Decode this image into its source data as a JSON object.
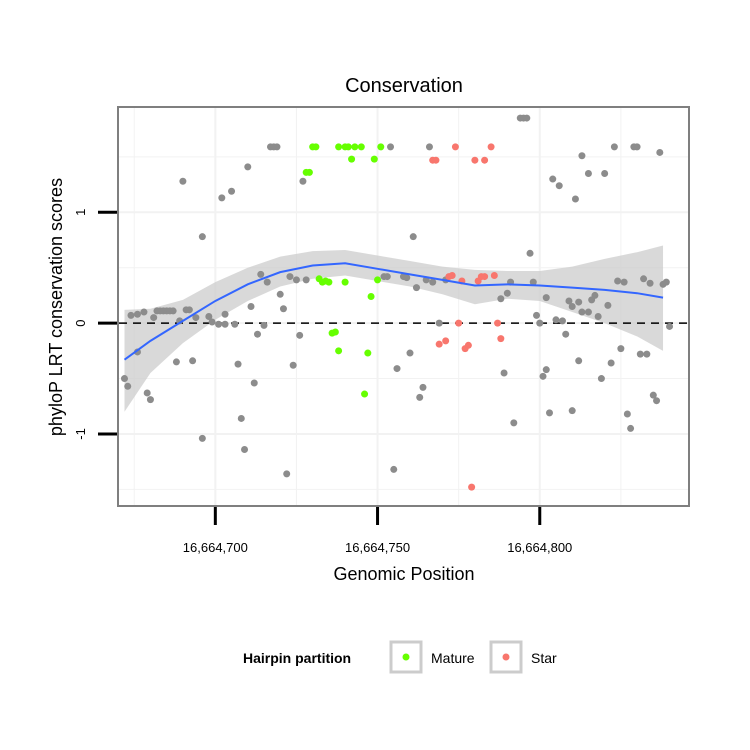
{
  "chart_data": {
    "type": "scatter",
    "title": "Conservation",
    "xlabel": "Genomic Position",
    "ylabel": "phyloP LRT conservation scores",
    "xlim": [
      16664670,
      16664846
    ],
    "ylim": [
      -1.65,
      1.95
    ],
    "x_ticks": [
      {
        "value": 16664700,
        "label": "16,664,700"
      },
      {
        "value": 16664750,
        "label": "16,664,750"
      },
      {
        "value": 16664800,
        "label": "16,664,800"
      }
    ],
    "y_ticks": [
      {
        "value": -1,
        "label": "-1"
      },
      {
        "value": 0,
        "label": "0"
      },
      {
        "value": 1,
        "label": "1"
      }
    ],
    "grid": true,
    "reference_line": {
      "y": 0,
      "style": "dashed"
    },
    "legend": {
      "title": "Hairpin partition",
      "position": "bottom",
      "entries": [
        {
          "label": "Mature",
          "color": "#66ff00"
        },
        {
          "label": "Star",
          "color": "#f8766d"
        }
      ]
    },
    "colors": {
      "other": "#8c8c8c",
      "mature": "#66ff00",
      "star": "#f8766d",
      "smooth": "#3366ff",
      "band": "#cccccc"
    },
    "series": [
      {
        "group": "other",
        "points": [
          [
            16664672,
            -0.5
          ],
          [
            16664673,
            -0.57
          ],
          [
            16664674,
            0.07
          ],
          [
            16664676,
            0.08
          ],
          [
            16664676,
            -0.26
          ],
          [
            16664678,
            0.1
          ],
          [
            16664679,
            -0.63
          ],
          [
            16664680,
            -0.69
          ],
          [
            16664681,
            0.05
          ],
          [
            16664682,
            0.11
          ],
          [
            16664683,
            0.11
          ],
          [
            16664684,
            0.11
          ],
          [
            16664685,
            0.11
          ],
          [
            16664686,
            0.11
          ],
          [
            16664687,
            0.11
          ],
          [
            16664688,
            -0.35
          ],
          [
            16664689,
            0.02
          ],
          [
            16664690,
            1.28
          ],
          [
            16664691,
            0.12
          ],
          [
            16664692,
            0.12
          ],
          [
            16664693,
            -0.34
          ],
          [
            16664694,
            0.05
          ],
          [
            16664696,
            0.78
          ],
          [
            16664696,
            -1.04
          ],
          [
            16664698,
            0.06
          ],
          [
            16664699,
            0.01
          ],
          [
            16664701,
            -0.01
          ],
          [
            16664702,
            1.13
          ],
          [
            16664703,
            -0.01
          ],
          [
            16664703,
            0.08
          ],
          [
            16664705,
            1.19
          ],
          [
            16664706,
            -0.01
          ],
          [
            16664707,
            -0.37
          ],
          [
            16664708,
            -0.86
          ],
          [
            16664709,
            -1.14
          ],
          [
            16664710,
            1.41
          ],
          [
            16664711,
            0.15
          ],
          [
            16664712,
            -0.54
          ],
          [
            16664713,
            -0.1
          ],
          [
            16664714,
            0.44
          ],
          [
            16664715,
            -0.02
          ],
          [
            16664716,
            0.37
          ],
          [
            16664717,
            1.59
          ],
          [
            16664718,
            1.59
          ],
          [
            16664719,
            1.59
          ],
          [
            16664720,
            0.26
          ],
          [
            16664721,
            0.13
          ],
          [
            16664722,
            -1.36
          ],
          [
            16664723,
            0.42
          ],
          [
            16664724,
            -0.38
          ],
          [
            16664725,
            0.39
          ],
          [
            16664726,
            -0.11
          ],
          [
            16664727,
            1.28
          ],
          [
            16664728,
            0.39
          ],
          [
            16664752,
            0.42
          ],
          [
            16664753,
            0.42
          ],
          [
            16664754,
            1.59
          ],
          [
            16664755,
            -1.32
          ],
          [
            16664756,
            -0.41
          ],
          [
            16664758,
            0.42
          ],
          [
            16664759,
            0.41
          ],
          [
            16664760,
            -0.27
          ],
          [
            16664761,
            0.78
          ],
          [
            16664762,
            0.32
          ],
          [
            16664763,
            -0.67
          ],
          [
            16664764,
            -0.58
          ],
          [
            16664765,
            0.39
          ],
          [
            16664766,
            1.59
          ],
          [
            16664767,
            0.37
          ],
          [
            16664769,
            0.0
          ],
          [
            16664771,
            0.39
          ],
          [
            16664788,
            0.22
          ],
          [
            16664789,
            -0.45
          ],
          [
            16664790,
            0.27
          ],
          [
            16664791,
            0.37
          ],
          [
            16664792,
            -0.9
          ],
          [
            16664794,
            1.85
          ],
          [
            16664795,
            1.85
          ],
          [
            16664796,
            1.85
          ],
          [
            16664797,
            0.63
          ],
          [
            16664798,
            0.37
          ],
          [
            16664799,
            0.07
          ],
          [
            16664800,
            0.0
          ],
          [
            16664801,
            -0.48
          ],
          [
            16664802,
            -0.42
          ],
          [
            16664802,
            0.23
          ],
          [
            16664803,
            -0.81
          ],
          [
            16664804,
            1.3
          ],
          [
            16664805,
            0.03
          ],
          [
            16664806,
            1.24
          ],
          [
            16664807,
            0.02
          ],
          [
            16664808,
            -0.1
          ],
          [
            16664809,
            0.2
          ],
          [
            16664810,
            -0.79
          ],
          [
            16664810,
            0.15
          ],
          [
            16664811,
            1.12
          ],
          [
            16664812,
            0.19
          ],
          [
            16664812,
            -0.34
          ],
          [
            16664813,
            1.51
          ],
          [
            16664813,
            0.1
          ],
          [
            16664815,
            0.1
          ],
          [
            16664815,
            1.35
          ],
          [
            16664816,
            0.21
          ],
          [
            16664817,
            0.25
          ],
          [
            16664818,
            0.06
          ],
          [
            16664819,
            -0.5
          ],
          [
            16664820,
            1.35
          ],
          [
            16664821,
            0.16
          ],
          [
            16664822,
            -0.36
          ],
          [
            16664823,
            1.59
          ],
          [
            16664824,
            0.38
          ],
          [
            16664825,
            -0.23
          ],
          [
            16664826,
            0.37
          ],
          [
            16664827,
            -0.82
          ],
          [
            16664828,
            -0.95
          ],
          [
            16664829,
            1.59
          ],
          [
            16664830,
            1.59
          ],
          [
            16664831,
            -0.28
          ],
          [
            16664832,
            0.4
          ],
          [
            16664833,
            -0.28
          ],
          [
            16664834,
            0.36
          ],
          [
            16664835,
            -0.65
          ],
          [
            16664836,
            -0.7
          ],
          [
            16664837,
            1.54
          ],
          [
            16664838,
            0.35
          ],
          [
            16664839,
            0.37
          ],
          [
            16664840,
            -0.03
          ]
        ]
      },
      {
        "group": "mature",
        "name": "Mature",
        "points": [
          [
            16664728,
            1.36
          ],
          [
            16664729,
            1.36
          ],
          [
            16664730,
            1.59
          ],
          [
            16664731,
            1.59
          ],
          [
            16664732,
            0.4
          ],
          [
            16664733,
            0.37
          ],
          [
            16664734,
            0.38
          ],
          [
            16664735,
            0.37
          ],
          [
            16664736,
            -0.09
          ],
          [
            16664737,
            -0.08
          ],
          [
            16664738,
            1.59
          ],
          [
            16664738,
            -0.25
          ],
          [
            16664740,
            1.59
          ],
          [
            16664740,
            0.37
          ],
          [
            16664741,
            1.59
          ],
          [
            16664742,
            1.48
          ],
          [
            16664743,
            1.59
          ],
          [
            16664745,
            1.59
          ],
          [
            16664746,
            -0.64
          ],
          [
            16664747,
            -0.27
          ],
          [
            16664748,
            0.24
          ],
          [
            16664749,
            1.48
          ],
          [
            16664750,
            0.39
          ],
          [
            16664751,
            1.59
          ]
        ]
      },
      {
        "group": "star",
        "name": "Star",
        "points": [
          [
            16664767,
            1.47
          ],
          [
            16664768,
            1.47
          ],
          [
            16664769,
            -0.19
          ],
          [
            16664771,
            -0.16
          ],
          [
            16664772,
            0.42
          ],
          [
            16664773,
            0.43
          ],
          [
            16664774,
            1.59
          ],
          [
            16664775,
            0.0
          ],
          [
            16664776,
            0.38
          ],
          [
            16664777,
            -0.23
          ],
          [
            16664778,
            -0.2
          ],
          [
            16664779,
            -1.48
          ],
          [
            16664780,
            1.47
          ],
          [
            16664781,
            0.38
          ],
          [
            16664782,
            0.42
          ],
          [
            16664783,
            0.42
          ],
          [
            16664783,
            1.47
          ],
          [
            16664785,
            1.59
          ],
          [
            16664786,
            0.43
          ],
          [
            16664787,
            0.0
          ],
          [
            16664788,
            -0.14
          ]
        ]
      }
    ],
    "smooth": {
      "x": [
        16664672,
        16664680,
        16664690,
        16664700,
        16664710,
        16664720,
        16664730,
        16664740,
        16664750,
        16664760,
        16664770,
        16664780,
        16664790,
        16664800,
        16664810,
        16664820,
        16664830,
        16664838
      ],
      "y": [
        -0.33,
        -0.16,
        0.02,
        0.2,
        0.35,
        0.46,
        0.52,
        0.54,
        0.49,
        0.44,
        0.39,
        0.34,
        0.35,
        0.34,
        0.32,
        0.3,
        0.27,
        0.23
      ],
      "band_lower": [
        -0.8,
        -0.45,
        -0.18,
        0.03,
        0.2,
        0.33,
        0.4,
        0.43,
        0.38,
        0.33,
        0.26,
        0.17,
        0.22,
        0.2,
        0.1,
        0.0,
        -0.12,
        -0.25
      ],
      "band_upper": [
        0.12,
        0.13,
        0.21,
        0.37,
        0.5,
        0.6,
        0.65,
        0.66,
        0.61,
        0.56,
        0.51,
        0.48,
        0.47,
        0.47,
        0.51,
        0.58,
        0.64,
        0.7
      ]
    }
  }
}
